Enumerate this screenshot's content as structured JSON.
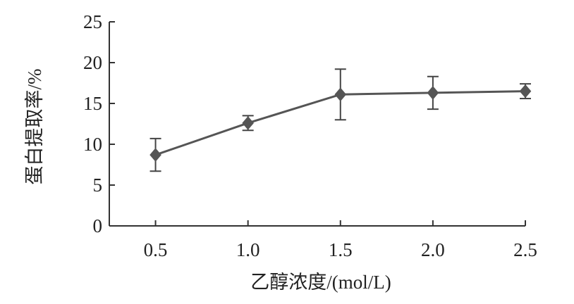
{
  "chart_data": {
    "type": "line",
    "xlabel": "乙醇浓度/(mol/L)",
    "ylabel": "蛋白提取率/%",
    "x": [
      0.5,
      1.0,
      1.5,
      2.0,
      2.5
    ],
    "x_tick_labels": [
      "0.5",
      "1.0",
      "1.5",
      "2.0",
      "2.5"
    ],
    "y_ticks": [
      0,
      5,
      10,
      15,
      20,
      25
    ],
    "y_tick_labels": [
      "0",
      "5",
      "10",
      "15",
      "20",
      "25"
    ],
    "xlim": [
      0.25,
      2.5
    ],
    "ylim": [
      0,
      25
    ],
    "grid": false,
    "series": [
      {
        "values": [
          8.7,
          12.6,
          16.1,
          16.3,
          16.5
        ],
        "error": [
          2.0,
          0.9,
          3.1,
          2.0,
          0.9
        ],
        "marker": "diamond",
        "color": "#555555"
      }
    ]
  }
}
